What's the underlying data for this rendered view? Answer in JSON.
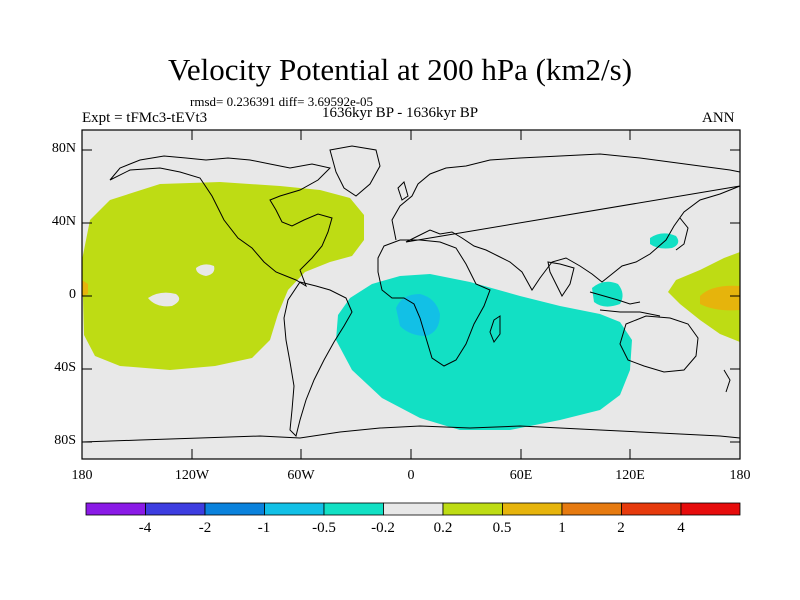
{
  "title": "Velocity Potential at 200 hPa (km2/s)",
  "stats": "rmsd= 0.236391 diff= 3.69592e-05",
  "experiment": "Expt = tFMc3-tEVt3",
  "period": "1636kyr BP - 1636kyr BP",
  "season": "ANN",
  "lat_ticks": [
    "80N",
    "40N",
    "0",
    "40S",
    "80S"
  ],
  "lon_ticks": [
    "180",
    "120W",
    "60W",
    "0",
    "60E",
    "120E",
    "180"
  ],
  "colorbar": {
    "labels": [
      "-4",
      "-2",
      "-1",
      "-0.5",
      "-0.2",
      "0.2",
      "0.5",
      "1",
      "2",
      "4"
    ],
    "colors": [
      "#8a1ae6",
      "#3d3de0",
      "#0a82dc",
      "#12c0e6",
      "#12e0c4",
      "#e8e8e8",
      "#bedc14",
      "#e6b40c",
      "#e67a10",
      "#e63a0c",
      "#e60c0c"
    ]
  },
  "colors": {
    "background": "#e8e8e8",
    "positive_small": "#bedc14",
    "negative_small": "#12e0c4",
    "negative_mid": "#12c0e6",
    "positive_mid": "#e6b40c",
    "coast": "#000000"
  },
  "regions": [
    {
      "name": "eastern-pacific-americas-positive",
      "level": "0.2 to 0.5"
    },
    {
      "name": "africa-indian-ocean-negative",
      "level": "-0.5 to -0.2"
    },
    {
      "name": "central-africa-negative-core",
      "level": "-1 to -0.5"
    },
    {
      "name": "west-pacific-positive",
      "level": "0.2 to 0.5"
    },
    {
      "name": "west-pacific-positive-core",
      "level": "0.5 to 1"
    }
  ]
}
